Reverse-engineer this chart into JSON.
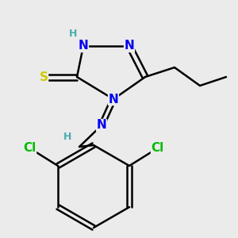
{
  "background_color": "#ebebeb",
  "atom_colors": {
    "N": "#0000ee",
    "S": "#cccc00",
    "C": "#000000",
    "H": "#4aacac",
    "Cl": "#00bb00"
  },
  "bond_color": "#000000",
  "bond_width": 1.8,
  "fig_size": [
    3.0,
    3.0
  ],
  "dpi": 100
}
